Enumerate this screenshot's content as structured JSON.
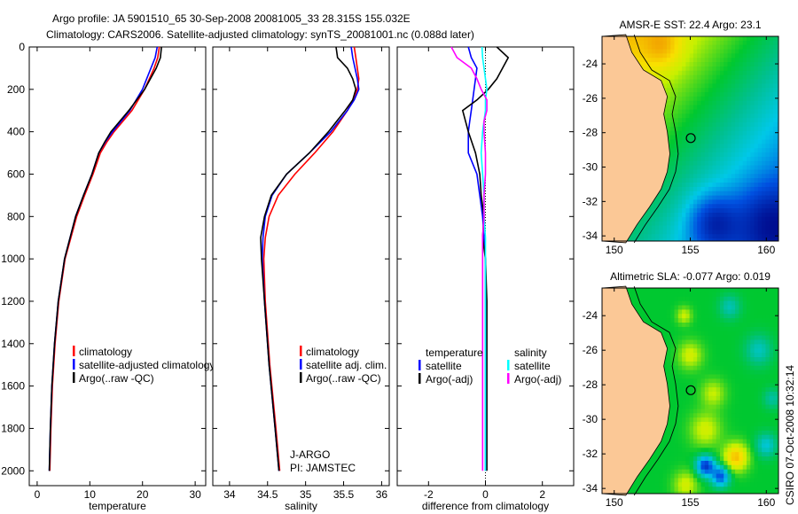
{
  "title": {
    "line1": "Argo profile: JA 5901510_65 30-Sep-2008 20081005_33 28.315S 155.032E",
    "line2": "Climatology: CARS2006. Satellite-adjusted climatology: synTS_20081001.nc (0.088d later)"
  },
  "side_text": "CSIRO 07-Oct-2008 10:32:14",
  "float_info": [
    "J-ARGO",
    "PI: JAMSTEC"
  ],
  "colors": {
    "climatology": "#ff0000",
    "satellite": "#0000ff",
    "argo": "#000000",
    "sal_satellite": "#00ffff",
    "sal_argo": "#ff00ff",
    "land": "#fbc896"
  },
  "chart_data": [
    {
      "type": "line",
      "xlabel": "temperature",
      "ylabel": "",
      "xlim": [
        -1.5,
        32
      ],
      "ylim": [
        2070,
        0
      ],
      "xticks": [
        0,
        10,
        20,
        30
      ],
      "yticks": [
        0,
        200,
        400,
        600,
        800,
        1000,
        1200,
        1400,
        1600,
        1800,
        2000
      ],
      "legend": [
        "climatology",
        "satellite-adjusted climatology",
        "Argo(..raw -QC)"
      ],
      "depth": [
        0,
        50,
        100,
        200,
        300,
        400,
        450,
        500,
        600,
        700,
        800,
        1000,
        1200,
        1400,
        1600,
        1800,
        2000
      ],
      "series": [
        {
          "name": "climatology",
          "values": [
            23.2,
            22.9,
            22.2,
            20.4,
            18.0,
            14.6,
            13.2,
            12.0,
            10.6,
            9.0,
            7.5,
            5.3,
            4.1,
            3.4,
            2.9,
            2.6,
            2.4
          ]
        },
        {
          "name": "satellite-adjusted climatology",
          "values": [
            22.8,
            22.4,
            21.6,
            20.0,
            17.6,
            14.3,
            12.9,
            11.7,
            10.4,
            8.8,
            7.3,
            5.2,
            4.0,
            3.3,
            2.8,
            2.5,
            2.3
          ]
        },
        {
          "name": "Argo(..raw -QC)",
          "values": [
            23.6,
            23.4,
            22.6,
            20.4,
            17.4,
            14.0,
            12.8,
            11.7,
            10.4,
            8.8,
            7.3,
            5.2,
            4.0,
            3.3,
            2.8,
            2.5,
            2.3
          ]
        }
      ]
    },
    {
      "type": "line",
      "xlabel": "salinity",
      "xlim": [
        33.78,
        36.1
      ],
      "ylim": [
        2070,
        0
      ],
      "xticks": [
        34,
        34.5,
        35,
        35.5,
        36
      ],
      "legend": [
        "climatology",
        "satellite adj. clim.",
        "Argo(..raw -QC)"
      ],
      "depth": [
        0,
        50,
        100,
        150,
        200,
        250,
        300,
        400,
        500,
        600,
        700,
        800,
        900,
        1000,
        1200,
        1500,
        1800,
        2000
      ],
      "series": [
        {
          "name": "climatology",
          "values": [
            35.64,
            35.66,
            35.68,
            35.7,
            35.68,
            35.62,
            35.55,
            35.36,
            35.12,
            34.86,
            34.64,
            34.52,
            34.47,
            34.45,
            34.47,
            34.53,
            34.61,
            34.66
          ]
        },
        {
          "name": "satellite adj. clim.",
          "values": [
            35.6,
            35.62,
            35.65,
            35.68,
            35.7,
            35.64,
            35.55,
            35.33,
            35.05,
            34.75,
            34.56,
            34.47,
            34.44,
            34.43,
            34.46,
            34.52,
            34.6,
            34.65
          ]
        },
        {
          "name": "Argo(..raw -QC)",
          "values": [
            35.4,
            35.42,
            35.55,
            35.62,
            35.66,
            35.62,
            35.52,
            35.3,
            35.05,
            34.75,
            34.55,
            34.46,
            34.41,
            34.42,
            34.46,
            34.52,
            34.6,
            34.65
          ]
        }
      ]
    },
    {
      "type": "line",
      "xlabel": "difference from climatology",
      "xlim": [
        -3.1,
        3.1
      ],
      "ylim": [
        2070,
        0
      ],
      "xticks": [
        -2,
        0,
        2
      ],
      "legend_temperature": {
        "header": "temperature",
        "items": [
          "satellite",
          "Argo(-adj)"
        ]
      },
      "legend_salinity": {
        "header": "salinity",
        "items": [
          "satellite",
          "Argo(-adj)"
        ]
      },
      "depth": [
        0,
        50,
        100,
        150,
        200,
        250,
        300,
        350,
        400,
        500,
        600,
        700,
        800,
        900,
        1000,
        1200,
        1500,
        1800,
        2000
      ],
      "series": [
        {
          "name": "temperature satellite",
          "values": [
            -0.6,
            -0.5,
            -0.3,
            -0.35,
            -0.4,
            -0.45,
            -0.5,
            -0.55,
            -0.6,
            -0.6,
            -0.3,
            -0.2,
            -0.1,
            -0.05,
            0.0,
            0.0,
            0.0,
            0.0,
            0.0
          ]
        },
        {
          "name": "temperature Argo(-adj)",
          "values": [
            0.4,
            0.8,
            0.6,
            0.4,
            0.1,
            -0.3,
            -0.8,
            -0.7,
            -0.6,
            -0.35,
            -0.2,
            -0.15,
            -0.05,
            -0.1,
            0.0,
            0.05,
            0.05,
            0.05,
            0.05
          ]
        },
        {
          "name": "salinity satellite",
          "values": [
            -0.12,
            -0.1,
            -0.05,
            0.0,
            0.05,
            0.0,
            0.0,
            -0.05,
            -0.1,
            -0.15,
            -0.1,
            -0.05,
            -0.05,
            0.0,
            0.0,
            0.0,
            0.0,
            0.0,
            0.0
          ]
        },
        {
          "name": "salinity Argo(-adj)",
          "values": [
            -1.2,
            -1.0,
            -0.5,
            -0.3,
            -0.15,
            0.05,
            0.05,
            -0.05,
            -0.05,
            0.0,
            0.0,
            -0.05,
            -0.05,
            -0.1,
            -0.1,
            -0.1,
            -0.1,
            -0.1,
            -0.1
          ]
        }
      ]
    },
    {
      "type": "heatmap",
      "title": "AMSR-E SST: 22.4 Argo: 23.1",
      "xlim": [
        149.2,
        160.8
      ],
      "ylim": [
        -34.3,
        -22.4
      ],
      "xticks": [
        150,
        155,
        160
      ],
      "yticks": [
        -24,
        -26,
        -28,
        -30,
        -32,
        -34
      ],
      "marker": {
        "lon": 155.032,
        "lat": -28.315
      }
    },
    {
      "type": "heatmap",
      "title": "Altimetric SLA: -0.077 Argo: 0.019",
      "xlim": [
        149.2,
        160.8
      ],
      "ylim": [
        -34.3,
        -22.4
      ],
      "xticks": [
        150,
        155,
        160
      ],
      "yticks": [
        -24,
        -26,
        -28,
        -30,
        -32,
        -34
      ],
      "marker": {
        "lon": 155.032,
        "lat": -28.315
      }
    }
  ]
}
